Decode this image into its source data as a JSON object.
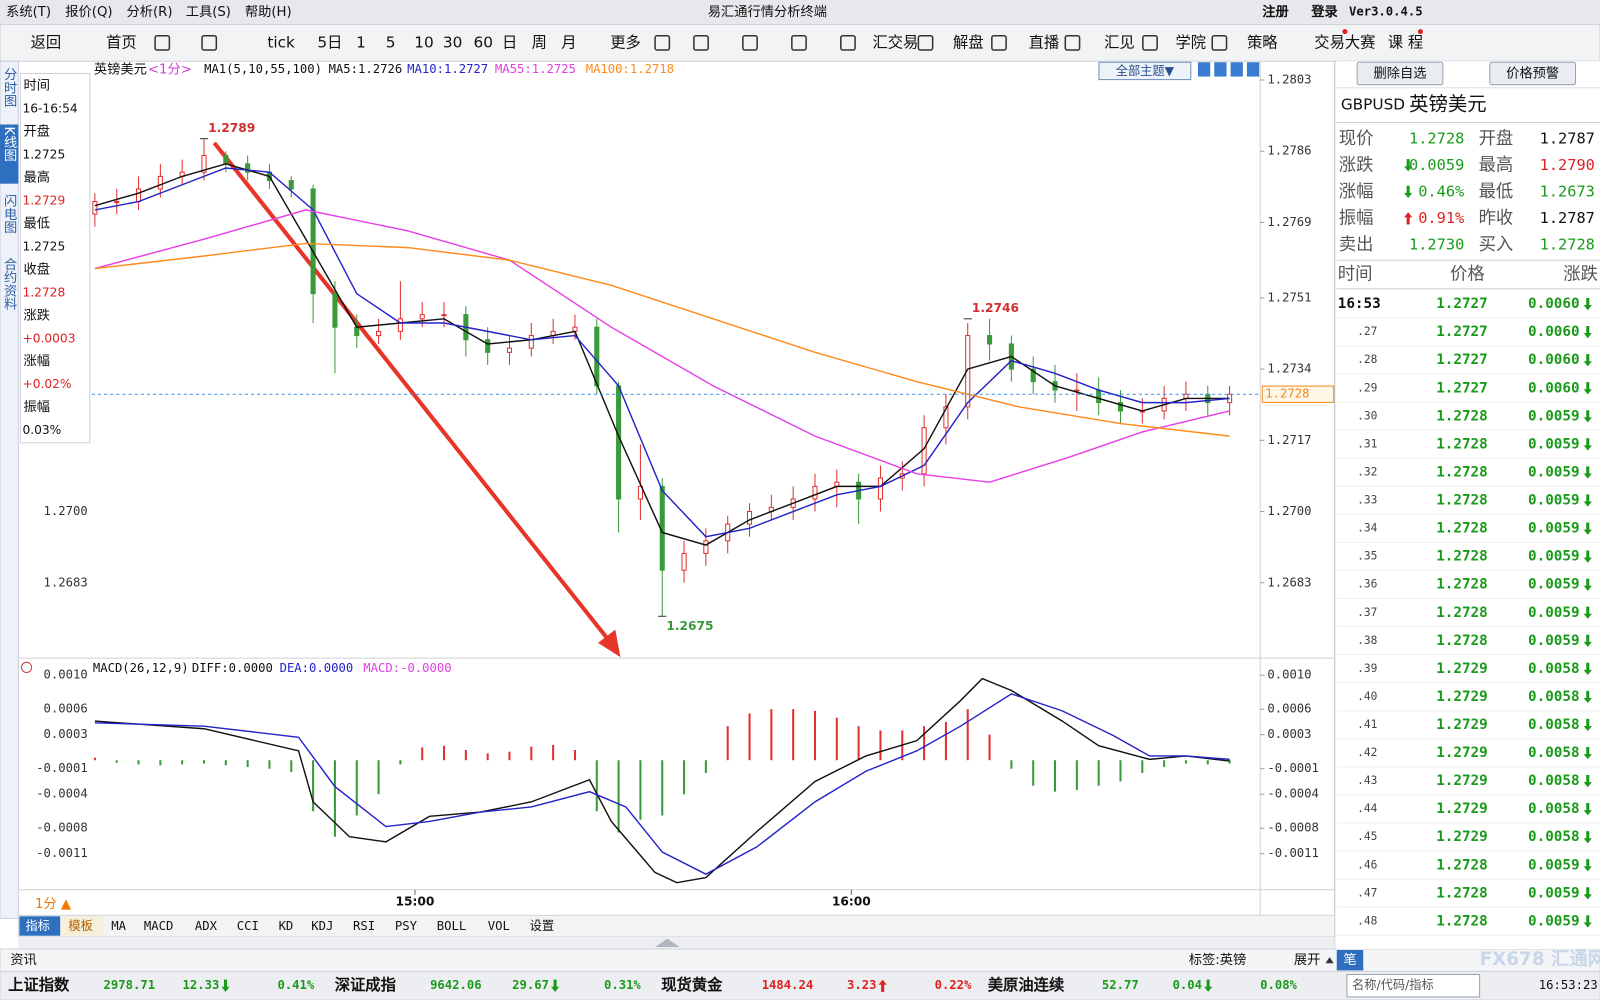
{
  "window": {
    "menu": [
      "系统(T)",
      "报价(Q)",
      "分析(R)",
      "工具(S)",
      "帮助(H)"
    ],
    "title": "易汇通行情分析终端",
    "register": "注册",
    "login": "登录",
    "version": "Ver3.0.4.5"
  },
  "toolbar": [
    "返回",
    "首页",
    "tick",
    "5日",
    "1",
    "5",
    "10",
    "30",
    "60",
    "日",
    "周",
    "月",
    "更多",
    "汇交易",
    "解盘",
    "直播",
    "汇见",
    "学院",
    "策略",
    "交易大赛",
    "课 程"
  ],
  "side_tabs": [
    "分时图",
    "K线图",
    "闪电图",
    "合约资料"
  ],
  "info_panel": [
    {
      "label": "时间",
      "value": "16-16:54"
    },
    {
      "label": "开盘",
      "value": "1.2725"
    },
    {
      "label": "最高",
      "value": "1.2729",
      "color": "#e02020"
    },
    {
      "label": "最低",
      "value": "1.2725"
    },
    {
      "label": "收盘",
      "value": "1.2728",
      "color": "#e02020"
    },
    {
      "label": "涨跌",
      "value": "+0.0003",
      "color": "#e02020"
    },
    {
      "label": "涨幅",
      "value": "+0.02%",
      "color": "#e02020"
    },
    {
      "label": "振幅",
      "value": "0.03%"
    }
  ],
  "chart_header": {
    "symbol": "英镑美元",
    "period": "<1分>",
    "ma_set": "MA1(5,10,55,100)",
    "ma5": "MA5:1.2726",
    "ma10": "MA10:1.2727",
    "ma55": "MA55:1.2725",
    "ma100": "MA100:1.2718",
    "theme_button": "全部主题▼"
  },
  "price_chart": {
    "type": "candlestick",
    "xlim": [
      0,
      156
    ],
    "ylim": [
      1.2665,
      1.2807
    ],
    "yticks": [
      {
        "value": 1.2803,
        "label": "1.2803"
      },
      {
        "value": 1.2786,
        "label": "1.2786"
      },
      {
        "value": 1.2769,
        "label": "1.2769"
      },
      {
        "value": 1.2751,
        "label": "1.2751"
      },
      {
        "value": 1.2734,
        "label": "1.2734"
      },
      {
        "value": 1.2717,
        "label": "1.2717"
      },
      {
        "value": 1.27,
        "label": "1.2700"
      },
      {
        "value": 1.2683,
        "label": "1.2683"
      }
    ],
    "xticks": [
      {
        "value": 44,
        "label": "15:00"
      },
      {
        "value": 104,
        "label": "16:00"
      }
    ],
    "up_color": "#e03030",
    "down_color": "#3a9a3a",
    "candles": {
      "x": [
        0,
        3,
        6,
        9,
        12,
        15,
        18,
        21,
        24,
        27,
        30,
        33,
        36,
        39,
        42,
        45,
        48,
        51,
        54,
        57,
        60,
        63,
        66,
        69,
        72,
        75,
        78,
        81,
        84,
        87,
        90,
        93,
        96,
        99,
        102,
        105,
        108,
        111,
        114,
        117,
        120,
        123,
        126,
        129,
        132,
        135,
        138,
        141,
        144,
        147,
        150,
        153,
        156
      ],
      "open": [
        1.2771,
        1.2774,
        1.2774,
        1.2777,
        1.278,
        1.2781,
        1.2785,
        1.2783,
        1.2781,
        1.2779,
        1.2777,
        1.2752,
        1.2744,
        1.2742,
        1.2743,
        1.2746,
        1.2747,
        1.2747,
        1.2741,
        1.2738,
        1.2739,
        1.2742,
        1.2743,
        1.2744,
        1.273,
        1.2703,
        1.2706,
        1.2686,
        1.269,
        1.2693,
        1.2697,
        1.27,
        1.2701,
        1.2703,
        1.2706,
        1.2707,
        1.2703,
        1.2708,
        1.2709,
        1.272,
        1.2725,
        1.2742,
        1.274,
        1.2734,
        1.2731,
        1.2729,
        1.2729,
        1.2726,
        1.2724,
        1.2724,
        1.2727,
        1.2728,
        1.2726
      ],
      "close": [
        1.2774,
        1.2774,
        1.2777,
        1.278,
        1.2781,
        1.2785,
        1.2783,
        1.2781,
        1.2779,
        1.2777,
        1.2752,
        1.2744,
        1.2742,
        1.2743,
        1.2746,
        1.2747,
        1.2747,
        1.2741,
        1.2738,
        1.2739,
        1.2742,
        1.2743,
        1.2744,
        1.273,
        1.2703,
        1.2706,
        1.2686,
        1.269,
        1.2693,
        1.2697,
        1.27,
        1.2701,
        1.2703,
        1.2706,
        1.2707,
        1.2703,
        1.2708,
        1.2709,
        1.272,
        1.2725,
        1.2742,
        1.274,
        1.2734,
        1.2731,
        1.2729,
        1.2729,
        1.2726,
        1.2724,
        1.2724,
        1.2727,
        1.2728,
        1.2726,
        1.2728
      ],
      "high": [
        1.2776,
        1.2777,
        1.278,
        1.2783,
        1.2784,
        1.2789,
        1.2786,
        1.2785,
        1.2783,
        1.278,
        1.2778,
        1.2755,
        1.2747,
        1.2746,
        1.2755,
        1.275,
        1.275,
        1.2749,
        1.2744,
        1.2742,
        1.2745,
        1.2746,
        1.2747,
        1.2746,
        1.2731,
        1.2716,
        1.2708,
        1.2693,
        1.2696,
        1.2699,
        1.2702,
        1.2704,
        1.2706,
        1.2709,
        1.271,
        1.2709,
        1.2711,
        1.2712,
        1.2723,
        1.2728,
        1.2745,
        1.2746,
        1.2742,
        1.2737,
        1.2735,
        1.2733,
        1.2732,
        1.2729,
        1.2727,
        1.273,
        1.2731,
        1.273,
        1.273
      ],
      "low": [
        1.2768,
        1.2771,
        1.2772,
        1.2775,
        1.2778,
        1.2779,
        1.2781,
        1.2779,
        1.2777,
        1.2775,
        1.2745,
        1.2733,
        1.2739,
        1.274,
        1.2741,
        1.2744,
        1.2744,
        1.2737,
        1.2735,
        1.2735,
        1.2737,
        1.274,
        1.2741,
        1.2728,
        1.2695,
        1.2698,
        1.2675,
        1.2683,
        1.2687,
        1.269,
        1.2694,
        1.2698,
        1.2698,
        1.27,
        1.2701,
        1.2697,
        1.27,
        1.2705,
        1.2706,
        1.2716,
        1.2722,
        1.2736,
        1.2731,
        1.2728,
        1.2726,
        1.2724,
        1.2723,
        1.2721,
        1.2721,
        1.2722,
        1.2724,
        1.2723,
        1.2723
      ]
    },
    "ma_lines": [
      {
        "name": "MA5",
        "color": "#111111",
        "x": [
          0,
          6,
          12,
          18,
          24,
          30,
          36,
          42,
          48,
          54,
          60,
          66,
          72,
          78,
          84,
          90,
          96,
          102,
          108,
          114,
          120,
          126,
          132,
          138,
          144,
          150,
          156
        ],
        "values": [
          1.2773,
          1.2776,
          1.278,
          1.2783,
          1.278,
          1.2762,
          1.2744,
          1.2745,
          1.2746,
          1.274,
          1.2741,
          1.2743,
          1.2718,
          1.2695,
          1.2692,
          1.2698,
          1.2702,
          1.2706,
          1.2706,
          1.2715,
          1.2734,
          1.2737,
          1.273,
          1.2727,
          1.2724,
          1.2727,
          1.2727
        ]
      },
      {
        "name": "MA10",
        "color": "#2323c8",
        "x": [
          0,
          6,
          12,
          18,
          24,
          30,
          36,
          42,
          48,
          54,
          60,
          66,
          72,
          78,
          84,
          90,
          96,
          102,
          108,
          114,
          120,
          126,
          132,
          138,
          144,
          150,
          156
        ],
        "values": [
          1.2772,
          1.2774,
          1.2778,
          1.2782,
          1.2781,
          1.2772,
          1.2752,
          1.2745,
          1.2745,
          1.2743,
          1.2741,
          1.2742,
          1.273,
          1.2705,
          1.2694,
          1.2696,
          1.27,
          1.2704,
          1.2706,
          1.2711,
          1.2726,
          1.2736,
          1.2733,
          1.2729,
          1.2726,
          1.2726,
          1.2727
        ]
      },
      {
        "name": "MA55",
        "color": "#e83ee8",
        "x": [
          0,
          15,
          29,
          43,
          57,
          71,
          85,
          99,
          113,
          123,
          134,
          144,
          156
        ],
        "values": [
          1.2758,
          1.2765,
          1.2772,
          1.2767,
          1.276,
          1.2744,
          1.273,
          1.2718,
          1.2709,
          1.2707,
          1.2713,
          1.2719,
          1.2724
        ]
      },
      {
        "name": "MA100",
        "color": "#ff8a1c",
        "x": [
          0,
          15,
          29,
          43,
          57,
          71,
          85,
          99,
          113,
          127,
          141,
          156
        ],
        "values": [
          1.2758,
          1.2761,
          1.2764,
          1.2763,
          1.276,
          1.2754,
          1.2746,
          1.2738,
          1.2731,
          1.2725,
          1.2721,
          1.2718
        ]
      }
    ],
    "last_price": {
      "value": 1.2728,
      "label": "1.2728"
    },
    "annotations": [
      {
        "x": 15,
        "value": 1.2789,
        "color": "#d03030"
      },
      {
        "x": 120,
        "value": 1.2746,
        "color": "#d03030"
      },
      {
        "x": 78,
        "value": 1.2675,
        "color": "#3a9a3a"
      }
    ]
  },
  "macd_header": {
    "params": "MACD(26,12,9)",
    "diff": "DIFF:0.0000",
    "dea": "DEA:0.0000",
    "macd": "MACD:-0.0000"
  },
  "macd_chart": {
    "type": "macd",
    "ylim": [
      -0.0015,
      0.0012
    ],
    "yticks": [
      {
        "value": 0.001,
        "label": "0.0010"
      },
      {
        "value": 0.0006,
        "label": "0.0006"
      },
      {
        "value": 0.0003,
        "label": "0.0003"
      },
      {
        "value": -0.0001,
        "label": "-0.0001"
      },
      {
        "value": -0.0004,
        "label": "-0.0004"
      },
      {
        "value": -0.0008,
        "label": "-0.0008"
      },
      {
        "value": -0.0011,
        "label": "-0.0011"
      }
    ],
    "histogram": [
      3e-05,
      -3e-05,
      -5e-05,
      -6e-05,
      -5e-05,
      -4e-05,
      -6e-05,
      -8e-05,
      -0.0001,
      -0.00014,
      -0.0006,
      -0.0009,
      -0.00065,
      -0.0004,
      -5e-05,
      0.00015,
      0.00017,
      0.00012,
      8e-05,
      0.0001,
      0.00016,
      0.00018,
      0.00012,
      -0.0006,
      -0.00085,
      -0.0007,
      -0.00065,
      -0.0004,
      -0.00015,
      0.0004,
      0.00055,
      0.0006,
      0.0006,
      0.00058,
      0.0005,
      0.0004,
      0.00035,
      0.00035,
      0.0004,
      0.00045,
      0.0006,
      0.0003,
      -0.0001,
      -0.0003,
      -0.00037,
      -0.00035,
      -0.0003,
      -0.00025,
      -0.00015,
      -8e-05,
      -4e-05,
      -5e-05,
      -4e-05
    ],
    "up_color": "#e03030",
    "down_color": "#3a9a3a",
    "series": [
      {
        "name": "DIFF",
        "color": "#111111",
        "x": [
          0,
          15,
          28,
          30,
          35,
          40,
          46,
          53,
          60,
          68,
          71,
          77,
          80,
          84,
          91,
          99,
          106,
          113,
          119,
          122,
          126,
          133,
          138,
          145,
          150,
          156
        ],
        "values": [
          0.00046,
          0.00037,
          0.00011,
          -0.00049,
          -0.0009,
          -0.00096,
          -0.00066,
          -0.00061,
          -0.00049,
          -0.00023,
          -0.00072,
          -0.00132,
          -0.00144,
          -0.00138,
          -0.00084,
          -0.00025,
          5e-05,
          0.00023,
          0.0007,
          0.00096,
          0.00082,
          0.00046,
          0.00017,
          1e-05,
          5e-05,
          -1e-05
        ]
      },
      {
        "name": "DEA",
        "color": "#2323c8",
        "x": [
          0,
          15,
          28,
          33,
          40,
          46,
          53,
          60,
          68,
          73,
          78,
          84,
          91,
          99,
          106,
          113,
          119,
          126,
          133,
          140,
          145,
          150,
          156
        ],
        "values": [
          0.00044,
          0.0004,
          0.00027,
          -0.00031,
          -0.00078,
          -0.00072,
          -0.00061,
          -0.00055,
          -0.00037,
          -0.00055,
          -0.00108,
          -0.00134,
          -0.00102,
          -0.00049,
          -0.00013,
          0.00011,
          0.0004,
          0.00078,
          0.00058,
          0.00029,
          5e-05,
          5e-05,
          1e-05
        ]
      }
    ]
  },
  "period_selector": "1分 ▲",
  "indicator_tabs": [
    "指标",
    "模板",
    "MA",
    "MACD",
    "ADX",
    "CCI",
    "KD",
    "KDJ",
    "RSI",
    "PSY",
    "BOLL",
    "VOL",
    "设置"
  ],
  "quote_panel": {
    "buttons": [
      "删除自选",
      "价格预警"
    ],
    "code": "GBPUSD",
    "name": "英镑美元",
    "rows": [
      [
        {
          "text": "现价"
        },
        {
          "text": "1.2728",
          "color": "#1a9a1a"
        },
        {
          "text": "开盘"
        },
        {
          "text": "1.2787"
        }
      ],
      [
        {
          "text": "涨跌"
        },
        {
          "text": "0.0059",
          "color": "#1a9a1a",
          "arrow": "down"
        },
        {
          "text": "最高"
        },
        {
          "text": "1.2790",
          "color": "#e02020"
        }
      ],
      [
        {
          "text": "涨幅"
        },
        {
          "text": "0.46%",
          "color": "#1a9a1a",
          "arrow": "down"
        },
        {
          "text": "最低"
        },
        {
          "text": "1.2673",
          "color": "#1a9a1a"
        }
      ],
      [
        {
          "text": "振幅"
        },
        {
          "text": "0.91%",
          "color": "#e02020",
          "arrow": "up"
        },
        {
          "text": "昨收"
        },
        {
          "text": "1.2787"
        }
      ],
      [
        {
          "text": "卖出"
        },
        {
          "text": "1.2730",
          "color": "#1a9a1a"
        },
        {
          "text": "买入"
        },
        {
          "text": "1.2728",
          "color": "#1a9a1a"
        }
      ]
    ],
    "tick_header": [
      "时间",
      "价格",
      "涨跌"
    ],
    "ticks": [
      [
        "16:53",
        "1.2727",
        "0.0060"
      ],
      [
        ".27",
        "1.2727",
        "0.0060"
      ],
      [
        ".28",
        "1.2727",
        "0.0060"
      ],
      [
        ".29",
        "1.2727",
        "0.0060"
      ],
      [
        ".30",
        "1.2728",
        "0.0059"
      ],
      [
        ".31",
        "1.2728",
        "0.0059"
      ],
      [
        ".32",
        "1.2728",
        "0.0059"
      ],
      [
        ".33",
        "1.2728",
        "0.0059"
      ],
      [
        ".34",
        "1.2728",
        "0.0059"
      ],
      [
        ".35",
        "1.2728",
        "0.0059"
      ],
      [
        ".36",
        "1.2728",
        "0.0059"
      ],
      [
        ".37",
        "1.2728",
        "0.0059"
      ],
      [
        ".38",
        "1.2728",
        "0.0059"
      ],
      [
        ".39",
        "1.2729",
        "0.0058"
      ],
      [
        ".40",
        "1.2729",
        "0.0058"
      ],
      [
        ".41",
        "1.2729",
        "0.0058"
      ],
      [
        ".42",
        "1.2729",
        "0.0058"
      ],
      [
        ".43",
        "1.2729",
        "0.0058"
      ],
      [
        ".44",
        "1.2729",
        "0.0058"
      ],
      [
        ".45",
        "1.2729",
        "0.0058"
      ],
      [
        ".46",
        "1.2728",
        "0.0059"
      ],
      [
        ".47",
        "1.2728",
        "0.0059"
      ],
      [
        ".48",
        "1.2728",
        "0.0059"
      ]
    ]
  },
  "status_bar": {
    "news": "资讯",
    "tag": "标签:英镑",
    "expand": "展开",
    "pen": "笔",
    "search": "名称/代码/指标",
    "clock": "16:53:23",
    "brand": "FX678 汇通网"
  },
  "ticker": [
    {
      "name": "上证指数",
      "price": "2978.71",
      "change": "12.33",
      "pct": "0.41%",
      "color": "#1a9a1a",
      "arrow": "down"
    },
    {
      "name": "深证成指",
      "price": "9642.06",
      "change": "29.67",
      "pct": "0.31%",
      "color": "#1a9a1a",
      "arrow": "down"
    },
    {
      "name": "现货黄金",
      "price": "1484.24",
      "change": "3.23",
      "pct": "0.22%",
      "color": "#e02020",
      "arrow": "up"
    },
    {
      "name": "美原油连续",
      "price": "52.77",
      "change": "0.04",
      "pct": "0.08%",
      "color": "#1a9a1a",
      "arrow": "down"
    }
  ]
}
